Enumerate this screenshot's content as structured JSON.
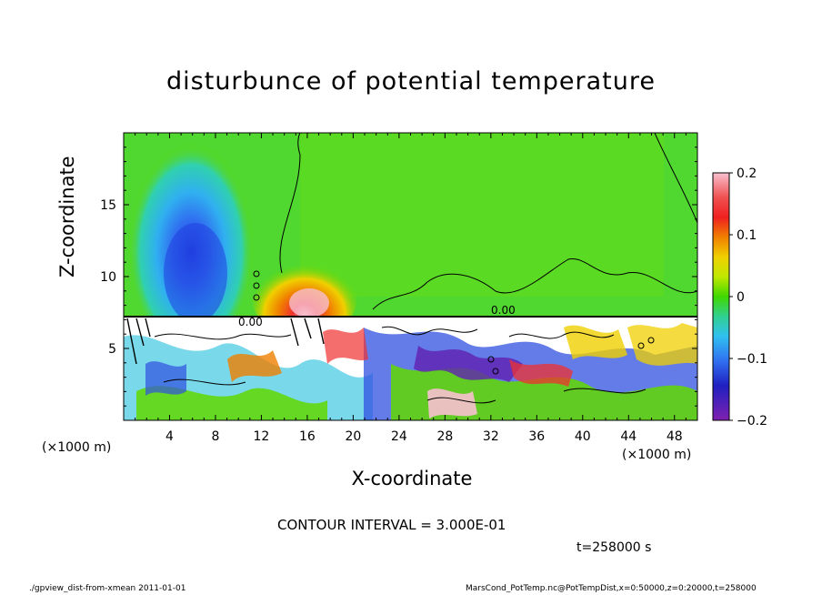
{
  "labels": {
    "title": "disturbunce of potential temperature",
    "ylabel": "Z-coordinate",
    "xlabel": "X-coordinate",
    "xunit_left": "(×1000 m)",
    "xunit_right": "(×1000 m)",
    "contour_interval": "CONTOUR INTERVAL = 3.000E-01",
    "time": "t=258000 s",
    "footer_left": "./gpview_dist-from-xmean  2011-01-01",
    "footer_right": "MarsCond_PotTemp.nc@PotTempDist,x=0:50000,z=0:20000,t=258000"
  },
  "chart_data": {
    "type": "heatmap",
    "title": "disturbunce of potential temperature",
    "xlabel": "X-coordinate (×1000 m)",
    "ylabel": "Z-coordinate (×1000 m)",
    "xlim": [
      0,
      50
    ],
    "ylim": [
      0,
      20
    ],
    "x_ticks": [
      4,
      8,
      12,
      16,
      20,
      24,
      28,
      32,
      36,
      40,
      44,
      48
    ],
    "y_ticks": [
      5,
      10,
      15
    ],
    "colorbar": {
      "range": [
        -0.2,
        0.2
      ],
      "ticks": [
        "0.2",
        "0.1",
        "0",
        "−0.1",
        "−0.2"
      ],
      "colors": [
        "#f8a0b8",
        "#f03030",
        "#f08000",
        "#f0d000",
        "#c0e800",
        "#60d800",
        "#30d060",
        "#30d0b0",
        "#30b0f0",
        "#3060f0",
        "#3020c0",
        "#8020b0"
      ]
    },
    "contour_interval": 0.3,
    "contour_labels": [
      "0.00",
      "0.00"
    ],
    "time_s": 258000,
    "features": [
      {
        "name": "negative anomaly",
        "x": [
          2.5,
          10
        ],
        "z": [
          7.5,
          18.5
        ],
        "min": -0.15
      },
      {
        "name": "positive anomaly",
        "x": [
          12.5,
          19
        ],
        "z": [
          7.5,
          13
        ],
        "max": 0.2
      },
      {
        "name": "turbulent layer",
        "x": [
          0,
          50
        ],
        "z": [
          0,
          7.5
        ]
      }
    ]
  }
}
